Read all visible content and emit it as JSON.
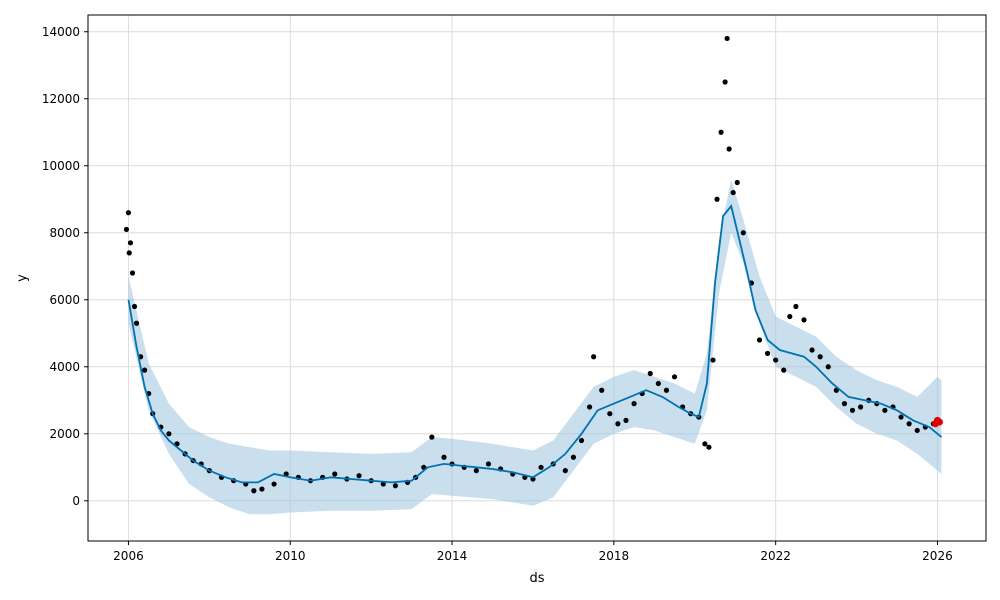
{
  "chart_data": {
    "type": "line",
    "title": "",
    "xlabel": "ds",
    "ylabel": "y",
    "xlim": [
      2005.0,
      2027.2
    ],
    "ylim": [
      -1200,
      14500
    ],
    "x_ticks": [
      2006,
      2010,
      2014,
      2018,
      2022,
      2026
    ],
    "x_tick_labels": [
      "2006",
      "2010",
      "2014",
      "2018",
      "2022",
      "2026"
    ],
    "y_ticks": [
      0,
      2000,
      4000,
      6000,
      8000,
      10000,
      12000,
      14000
    ],
    "y_tick_labels": [
      "0",
      "2000",
      "4000",
      "6000",
      "8000",
      "10000",
      "12000",
      "14000"
    ],
    "grid": true,
    "legend": "none",
    "colors": {
      "forecast_line": "#0072b2",
      "uncertainty_band": "#9cc5e0",
      "observed_points": "#000000",
      "highlight_points": "#e00000"
    },
    "series": [
      {
        "kind": "forecast",
        "x": [
          2006.0,
          2006.2,
          2006.4,
          2006.6,
          2006.8,
          2007.0,
          2007.3,
          2007.6,
          2008.0,
          2008.4,
          2008.8,
          2009.2,
          2009.6,
          2010.0,
          2010.5,
          2011.0,
          2011.5,
          2012.0,
          2012.5,
          2013.0,
          2013.4,
          2013.8,
          2014.2,
          2014.6,
          2015.0,
          2015.5,
          2016.0,
          2016.4,
          2016.8,
          2017.2,
          2017.6,
          2018.0,
          2018.4,
          2018.8,
          2019.2,
          2019.6,
          2019.9,
          2020.1,
          2020.3,
          2020.5,
          2020.7,
          2020.9,
          2021.1,
          2021.3,
          2021.5,
          2021.8,
          2022.1,
          2022.4,
          2022.7,
          2023.0,
          2023.4,
          2023.8,
          2024.2,
          2024.6,
          2025.0,
          2025.4,
          2025.8,
          2026.0,
          2026.1
        ],
        "y": [
          6000,
          4600,
          3400,
          2600,
          2100,
          1800,
          1500,
          1200,
          900,
          700,
          550,
          550,
          800,
          700,
          600,
          700,
          650,
          600,
          550,
          600,
          1000,
          1100,
          1050,
          1000,
          950,
          850,
          700,
          1000,
          1400,
          2000,
          2700,
          2900,
          3100,
          3300,
          3100,
          2800,
          2600,
          2500,
          3500,
          6500,
          8500,
          8800,
          7800,
          6800,
          5700,
          4800,
          4500,
          4400,
          4300,
          4000,
          3500,
          3100,
          3000,
          2900,
          2700,
          2400,
          2200,
          2000,
          1900
        ]
      },
      {
        "kind": "uncertainty_upper",
        "x": [
          2006.0,
          2006.5,
          2007.0,
          2007.5,
          2008.0,
          2008.5,
          2009.0,
          2009.5,
          2010.0,
          2011.0,
          2012.0,
          2013.0,
          2013.5,
          2014.0,
          2015.0,
          2016.0,
          2016.5,
          2017.0,
          2017.5,
          2018.0,
          2018.5,
          2019.0,
          2019.5,
          2020.0,
          2020.3,
          2020.6,
          2020.9,
          2021.2,
          2021.6,
          2022.0,
          2022.5,
          2023.0,
          2023.5,
          2024.0,
          2024.5,
          2025.0,
          2025.5,
          2026.0,
          2026.1
        ],
        "y": [
          6700,
          4100,
          2900,
          2200,
          1900,
          1700,
          1600,
          1500,
          1500,
          1450,
          1400,
          1450,
          1900,
          1850,
          1700,
          1500,
          1800,
          2600,
          3400,
          3700,
          3900,
          3700,
          3500,
          3200,
          4400,
          7800,
          9600,
          8400,
          6700,
          5500,
          5200,
          4900,
          4300,
          3900,
          3600,
          3400,
          3100,
          3700,
          3600
        ]
      },
      {
        "kind": "uncertainty_lower",
        "x": [
          2006.0,
          2006.5,
          2007.0,
          2007.5,
          2008.0,
          2008.5,
          2009.0,
          2009.5,
          2010.0,
          2011.0,
          2012.0,
          2013.0,
          2013.5,
          2014.0,
          2015.0,
          2016.0,
          2016.5,
          2017.0,
          2017.5,
          2018.0,
          2018.5,
          2019.0,
          2019.5,
          2020.0,
          2020.3,
          2020.6,
          2020.9,
          2021.2,
          2021.6,
          2022.0,
          2022.5,
          2023.0,
          2023.5,
          2024.0,
          2024.5,
          2025.0,
          2025.5,
          2026.0,
          2026.1
        ],
        "y": [
          5300,
          2700,
          1400,
          500,
          100,
          -200,
          -400,
          -400,
          -350,
          -300,
          -300,
          -250,
          200,
          150,
          50,
          -150,
          100,
          900,
          1700,
          2000,
          2200,
          2100,
          1900,
          1700,
          2700,
          6200,
          8000,
          7100,
          5300,
          4000,
          3700,
          3400,
          2800,
          2300,
          2000,
          1800,
          1400,
          900,
          800
        ]
      },
      {
        "kind": "observed",
        "x": [
          2005.95,
          2006.0,
          2006.02,
          2006.05,
          2006.1,
          2006.15,
          2006.2,
          2006.3,
          2006.4,
          2006.5,
          2006.6,
          2006.8,
          2007.0,
          2007.2,
          2007.4,
          2007.6,
          2007.8,
          2008.0,
          2008.3,
          2008.6,
          2008.9,
          2009.1,
          2009.3,
          2009.6,
          2009.9,
          2010.2,
          2010.5,
          2010.8,
          2011.1,
          2011.4,
          2011.7,
          2012.0,
          2012.3,
          2012.6,
          2012.9,
          2013.1,
          2013.3,
          2013.5,
          2013.8,
          2014.0,
          2014.3,
          2014.6,
          2014.9,
          2015.2,
          2015.5,
          2015.8,
          2016.0,
          2016.2,
          2016.5,
          2016.8,
          2017.0,
          2017.2,
          2017.4,
          2017.5,
          2017.7,
          2017.9,
          2018.1,
          2018.3,
          2018.5,
          2018.7,
          2018.9,
          2019.1,
          2019.3,
          2019.5,
          2019.7,
          2019.9,
          2020.1,
          2020.25,
          2020.35,
          2020.45,
          2020.55,
          2020.65,
          2020.75,
          2020.8,
          2020.85,
          2020.95,
          2021.05,
          2021.2,
          2021.4,
          2021.6,
          2021.8,
          2022.0,
          2022.2,
          2022.35,
          2022.5,
          2022.7,
          2022.9,
          2023.1,
          2023.3,
          2023.5,
          2023.7,
          2023.9,
          2024.1,
          2024.3,
          2024.5,
          2024.7,
          2024.9,
          2025.1,
          2025.3,
          2025.5,
          2025.7,
          2025.9
        ],
        "y": [
          8100,
          8600,
          7400,
          7700,
          6800,
          5800,
          5300,
          4300,
          3900,
          3200,
          2600,
          2200,
          2000,
          1700,
          1400,
          1200,
          1100,
          900,
          700,
          600,
          500,
          300,
          350,
          500,
          800,
          700,
          600,
          700,
          800,
          650,
          750,
          600,
          500,
          450,
          550,
          700,
          1000,
          1900,
          1300,
          1100,
          1000,
          900,
          1100,
          950,
          800,
          700,
          650,
          1000,
          1100,
          900,
          1300,
          1800,
          2800,
          4300,
          3300,
          2600,
          2300,
          2400,
          2900,
          3200,
          3800,
          3500,
          3300,
          3700,
          2800,
          2600,
          2500,
          1700,
          1600,
          4200,
          9000,
          11000,
          12500,
          13800,
          10500,
          9200,
          9500,
          8000,
          6500,
          4800,
          4400,
          4200,
          3900,
          5500,
          5800,
          5400,
          4500,
          4300,
          4000,
          3300,
          2900,
          2700,
          2800,
          3000,
          2900,
          2700,
          2800,
          2500,
          2300,
          2100,
          2200,
          2300
        ]
      },
      {
        "kind": "highlight",
        "x": [
          2025.95,
          2026.0,
          2026.05
        ],
        "y": [
          2300,
          2400,
          2350
        ]
      }
    ]
  }
}
